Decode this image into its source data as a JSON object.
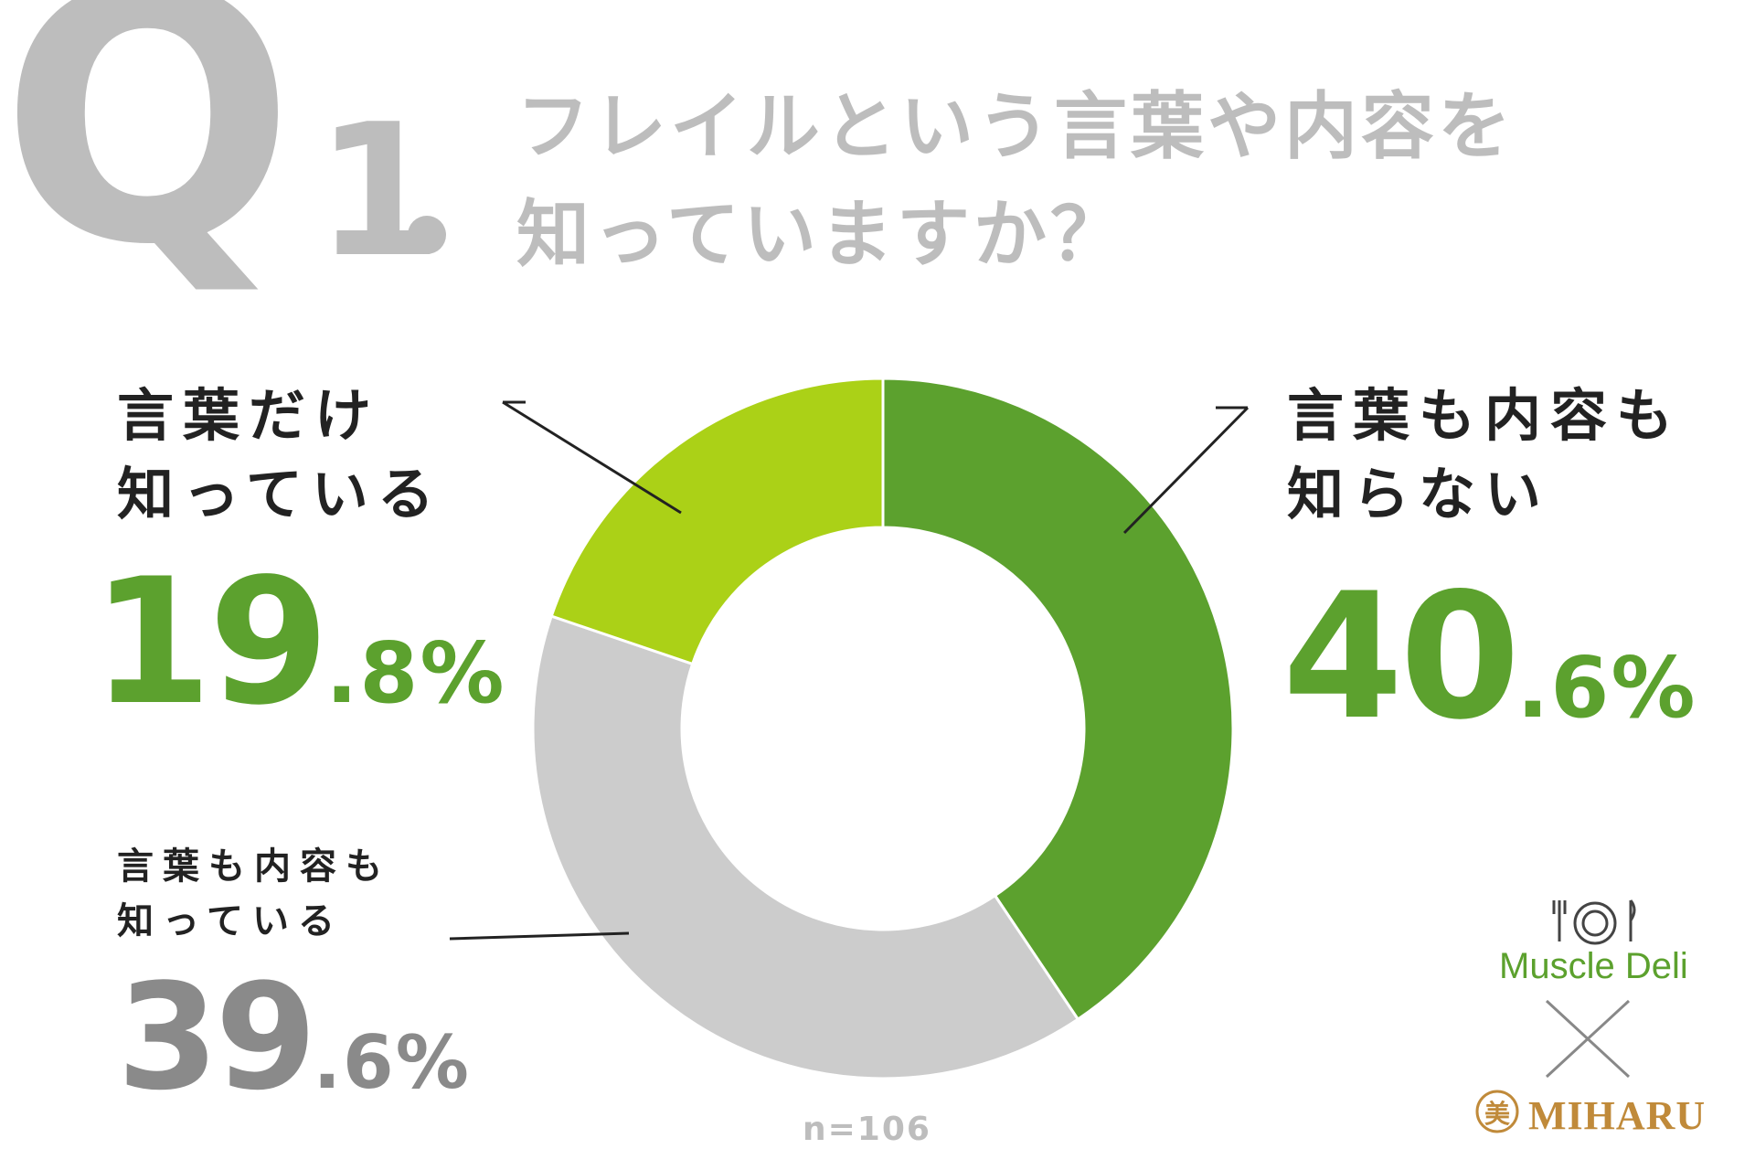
{
  "question": {
    "q_letter": "Q",
    "q_number": "1",
    "text_line1": "フレイルという言葉や内容を",
    "text_line2": "知っていますか？"
  },
  "chart_data": {
    "type": "pie",
    "style": "donut",
    "sample_label": "n=106",
    "slices": [
      {
        "label_line1": "言葉も内容も",
        "label_line2": "知らない",
        "value": 40.6,
        "pct_int": "40",
        "pct_frac": ".6%",
        "color": "#5ca12e"
      },
      {
        "label_line1": "言葉も内容も",
        "label_line2": "知っている",
        "value": 39.6,
        "pct_int": "39",
        "pct_frac": ".6%",
        "color": "#cccccc"
      },
      {
        "label_line1": "言葉だけ",
        "label_line2": "知っている",
        "value": 19.8,
        "pct_int": "19",
        "pct_frac": ".8%",
        "color": "#abd117"
      }
    ]
  },
  "brand": {
    "muscle_deli": "Muscle Deli",
    "miharu": "MIHARU",
    "miharu_seal": "美",
    "accent_green": "#5ca12e",
    "accent_gold": "#c08a3a"
  }
}
